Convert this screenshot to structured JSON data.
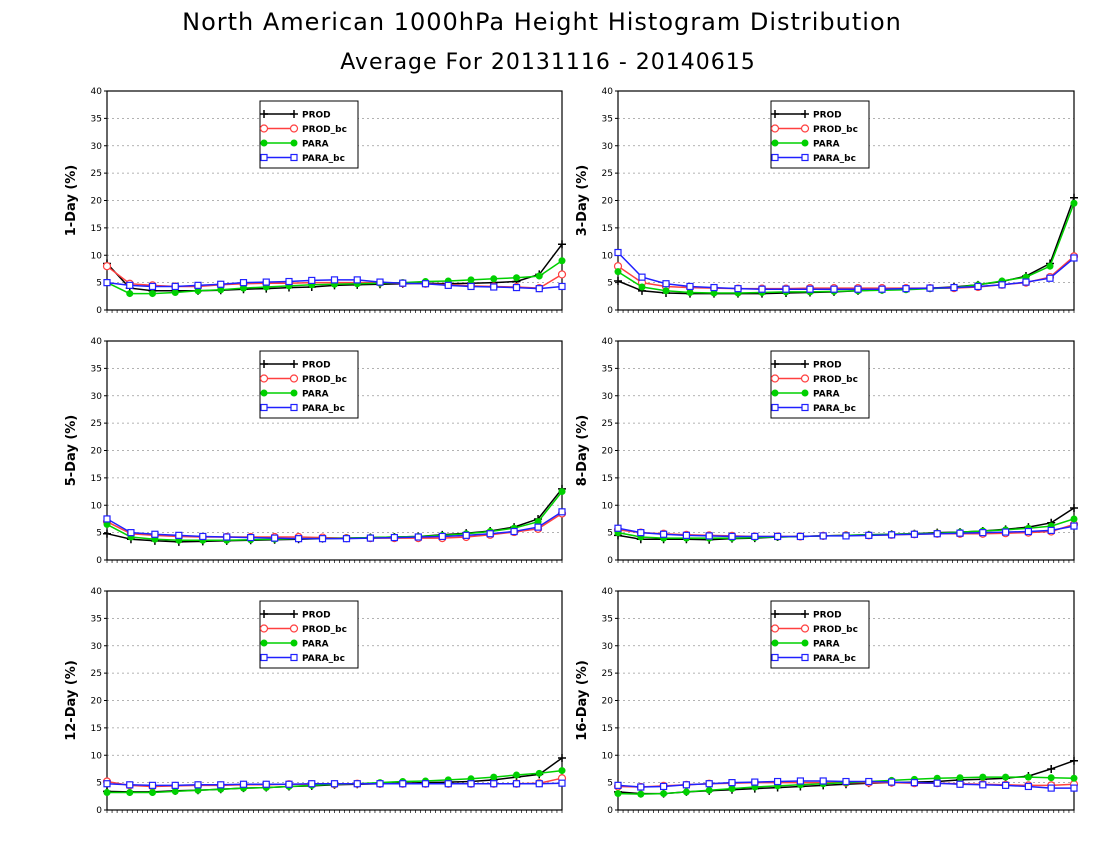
{
  "title": "North American 1000hPa Height Histogram Distribution",
  "subtitle": "Average For 20131116 - 20140615",
  "colors": {
    "PROD": "#000000",
    "PROD_bc": "#ff4040",
    "PARA": "#00d000",
    "PARA_bc": "#2020ff"
  },
  "chart_data": [
    {
      "type": "line",
      "ylabel": "1-Day (%)",
      "ylim": [
        0,
        40
      ],
      "yticks": [
        0,
        5,
        10,
        15,
        20,
        25,
        30,
        35,
        40
      ],
      "grid": true,
      "legend": "top-left",
      "series": [
        {
          "name": "PROD",
          "values": [
            8.5,
            4.0,
            3.5,
            3.5,
            3.5,
            3.6,
            3.8,
            3.9,
            4.1,
            4.2,
            4.5,
            4.6,
            4.7,
            4.8,
            4.9,
            4.8,
            4.9,
            5.0,
            5.2,
            6.5,
            12.0
          ]
        },
        {
          "name": "PROD_bc",
          "values": [
            8.0,
            4.8,
            4.5,
            4.3,
            4.3,
            4.6,
            4.8,
            4.9,
            4.9,
            5.0,
            5.0,
            5.0,
            5.0,
            4.9,
            4.8,
            4.6,
            4.4,
            4.3,
            4.2,
            4.0,
            6.5
          ]
        },
        {
          "name": "PARA",
          "values": [
            5.0,
            3.0,
            3.0,
            3.2,
            3.5,
            3.7,
            4.0,
            4.2,
            4.4,
            4.6,
            4.7,
            4.8,
            4.9,
            5.0,
            5.2,
            5.3,
            5.5,
            5.7,
            5.9,
            6.2,
            9.0
          ]
        },
        {
          "name": "PARA_bc",
          "values": [
            5.0,
            4.5,
            4.3,
            4.3,
            4.5,
            4.7,
            5.0,
            5.1,
            5.2,
            5.4,
            5.5,
            5.5,
            5.1,
            4.9,
            4.8,
            4.5,
            4.3,
            4.2,
            4.1,
            3.9,
            4.3
          ]
        }
      ]
    },
    {
      "type": "line",
      "ylabel": "3-Day (%)",
      "ylim": [
        0,
        40
      ],
      "yticks": [
        0,
        5,
        10,
        15,
        20,
        25,
        30,
        35,
        40
      ],
      "grid": true,
      "legend": "top-left",
      "series": [
        {
          "name": "PROD",
          "values": [
            5.3,
            3.5,
            3.1,
            3.0,
            3.0,
            3.0,
            3.0,
            3.1,
            3.2,
            3.3,
            3.5,
            3.7,
            3.9,
            4.0,
            4.2,
            4.6,
            5.2,
            6.2,
            8.5,
            20.5
          ]
        },
        {
          "name": "PROD_bc",
          "values": [
            8.0,
            5.0,
            4.3,
            4.1,
            4.0,
            3.9,
            3.9,
            3.9,
            4.0,
            4.0,
            4.0,
            4.0,
            4.0,
            4.0,
            4.0,
            4.2,
            4.6,
            5.0,
            6.0,
            9.8
          ]
        },
        {
          "name": "PARA",
          "values": [
            7.0,
            4.2,
            3.5,
            3.2,
            3.1,
            3.1,
            3.2,
            3.3,
            3.3,
            3.4,
            3.5,
            3.6,
            3.7,
            3.9,
            4.1,
            4.6,
            5.3,
            6.0,
            8.0,
            19.5
          ]
        },
        {
          "name": "PARA_bc",
          "values": [
            10.5,
            6.0,
            4.8,
            4.3,
            4.1,
            3.9,
            3.8,
            3.8,
            3.8,
            3.8,
            3.8,
            3.8,
            3.9,
            4.0,
            4.1,
            4.3,
            4.6,
            5.1,
            5.8,
            9.5
          ]
        }
      ]
    },
    {
      "type": "line",
      "ylabel": "5-Day (%)",
      "ylim": [
        0,
        40
      ],
      "yticks": [
        0,
        5,
        10,
        15,
        20,
        25,
        30,
        35,
        40
      ],
      "grid": true,
      "legend": "top-left",
      "series": [
        {
          "name": "PROD",
          "values": [
            4.8,
            3.8,
            3.5,
            3.3,
            3.4,
            3.5,
            3.6,
            3.7,
            3.8,
            3.9,
            4.0,
            4.1,
            4.2,
            4.3,
            4.6,
            4.9,
            5.3,
            6.0,
            7.5,
            13.0
          ]
        },
        {
          "name": "PROD_bc",
          "values": [
            7.0,
            4.8,
            4.5,
            4.3,
            4.2,
            4.2,
            4.2,
            4.2,
            4.2,
            4.1,
            4.0,
            4.0,
            4.0,
            4.0,
            4.0,
            4.2,
            4.6,
            5.1,
            5.7,
            8.5
          ]
        },
        {
          "name": "PARA",
          "values": [
            6.5,
            4.2,
            3.8,
            3.6,
            3.6,
            3.6,
            3.7,
            3.8,
            3.9,
            3.9,
            4.0,
            4.1,
            4.2,
            4.3,
            4.5,
            4.8,
            5.2,
            5.8,
            7.0,
            12.5
          ]
        },
        {
          "name": "PARA_bc",
          "values": [
            7.5,
            5.0,
            4.7,
            4.5,
            4.3,
            4.2,
            4.1,
            4.0,
            3.9,
            3.9,
            3.9,
            4.0,
            4.1,
            4.2,
            4.3,
            4.5,
            4.8,
            5.2,
            6.0,
            8.8
          ]
        }
      ]
    },
    {
      "type": "line",
      "ylabel": "8-Day (%)",
      "ylim": [
        0,
        40
      ],
      "yticks": [
        0,
        5,
        10,
        15,
        20,
        25,
        30,
        35,
        40
      ],
      "grid": true,
      "legend": "top-left",
      "series": [
        {
          "name": "PROD",
          "values": [
            4.5,
            3.8,
            3.8,
            3.8,
            3.7,
            3.9,
            4.0,
            4.2,
            4.3,
            4.4,
            4.5,
            4.6,
            4.7,
            4.8,
            5.0,
            5.1,
            5.3,
            5.6,
            6.0,
            6.8,
            9.5
          ]
        },
        {
          "name": "PROD_bc",
          "values": [
            5.5,
            5.0,
            4.8,
            4.6,
            4.5,
            4.4,
            4.3,
            4.3,
            4.3,
            4.4,
            4.5,
            4.5,
            4.6,
            4.7,
            4.8,
            4.8,
            4.8,
            4.9,
            5.0,
            5.2,
            6.5
          ]
        },
        {
          "name": "PARA",
          "values": [
            5.0,
            4.2,
            4.0,
            4.0,
            4.0,
            4.0,
            4.1,
            4.2,
            4.3,
            4.4,
            4.5,
            4.6,
            4.7,
            4.8,
            4.9,
            5.1,
            5.3,
            5.5,
            5.8,
            6.2,
            7.5
          ]
        },
        {
          "name": "PARA_bc",
          "values": [
            5.8,
            5.0,
            4.7,
            4.5,
            4.4,
            4.3,
            4.3,
            4.3,
            4.3,
            4.4,
            4.4,
            4.5,
            4.6,
            4.7,
            4.8,
            4.9,
            5.0,
            5.1,
            5.2,
            5.4,
            6.2
          ]
        }
      ]
    },
    {
      "type": "line",
      "ylabel": "12-Day (%)",
      "ylim": [
        0,
        40
      ],
      "yticks": [
        0,
        5,
        10,
        15,
        20,
        25,
        30,
        35,
        40
      ],
      "grid": true,
      "legend": "top-left",
      "series": [
        {
          "name": "PROD",
          "values": [
            3.4,
            3.3,
            3.3,
            3.5,
            3.6,
            3.8,
            4.0,
            4.1,
            4.3,
            4.4,
            4.6,
            4.7,
            4.8,
            4.9,
            5.0,
            5.1,
            5.2,
            5.5,
            6.0,
            6.5,
            9.5
          ]
        },
        {
          "name": "PROD_bc",
          "values": [
            5.2,
            4.5,
            4.3,
            4.4,
            4.5,
            4.5,
            4.6,
            4.6,
            4.7,
            4.7,
            4.7,
            4.8,
            4.8,
            4.8,
            4.8,
            4.8,
            4.8,
            4.8,
            4.8,
            4.9,
            5.8
          ]
        },
        {
          "name": "PARA",
          "values": [
            3.2,
            3.2,
            3.2,
            3.4,
            3.6,
            3.8,
            4.0,
            4.1,
            4.3,
            4.5,
            4.7,
            4.8,
            5.0,
            5.2,
            5.3,
            5.5,
            5.7,
            6.0,
            6.4,
            6.7,
            7.2
          ]
        },
        {
          "name": "PARA_bc",
          "values": [
            4.8,
            4.6,
            4.5,
            4.5,
            4.6,
            4.6,
            4.7,
            4.7,
            4.7,
            4.8,
            4.8,
            4.8,
            4.8,
            4.8,
            4.8,
            4.8,
            4.8,
            4.8,
            4.8,
            4.8,
            4.9
          ]
        }
      ]
    },
    {
      "type": "line",
      "ylabel": "16-Day (%)",
      "ylim": [
        0,
        40
      ],
      "yticks": [
        0,
        5,
        10,
        15,
        20,
        25,
        30,
        35,
        40
      ],
      "grid": true,
      "legend": "top-left",
      "series": [
        {
          "name": "PROD",
          "values": [
            3.3,
            3.0,
            3.0,
            3.3,
            3.5,
            3.7,
            3.9,
            4.1,
            4.3,
            4.5,
            4.7,
            4.9,
            5.0,
            5.1,
            5.2,
            5.5,
            5.6,
            5.8,
            6.2,
            7.5,
            9.0
          ]
        },
        {
          "name": "PROD_bc",
          "values": [
            4.3,
            4.2,
            4.4,
            4.6,
            4.8,
            4.9,
            5.0,
            5.0,
            5.0,
            5.0,
            5.0,
            5.0,
            5.0,
            4.9,
            4.9,
            4.8,
            4.7,
            4.6,
            4.5,
            4.5,
            4.7
          ]
        },
        {
          "name": "PARA",
          "values": [
            3.0,
            2.9,
            3.0,
            3.3,
            3.6,
            3.9,
            4.2,
            4.4,
            4.6,
            4.8,
            5.0,
            5.2,
            5.4,
            5.6,
            5.8,
            5.9,
            6.0,
            6.0,
            6.0,
            5.9,
            5.8
          ]
        },
        {
          "name": "PARA_bc",
          "values": [
            4.5,
            4.2,
            4.3,
            4.6,
            4.8,
            5.0,
            5.1,
            5.2,
            5.3,
            5.3,
            5.2,
            5.2,
            5.1,
            5.0,
            4.9,
            4.7,
            4.6,
            4.5,
            4.3,
            4.0,
            4.0
          ]
        }
      ]
    }
  ]
}
